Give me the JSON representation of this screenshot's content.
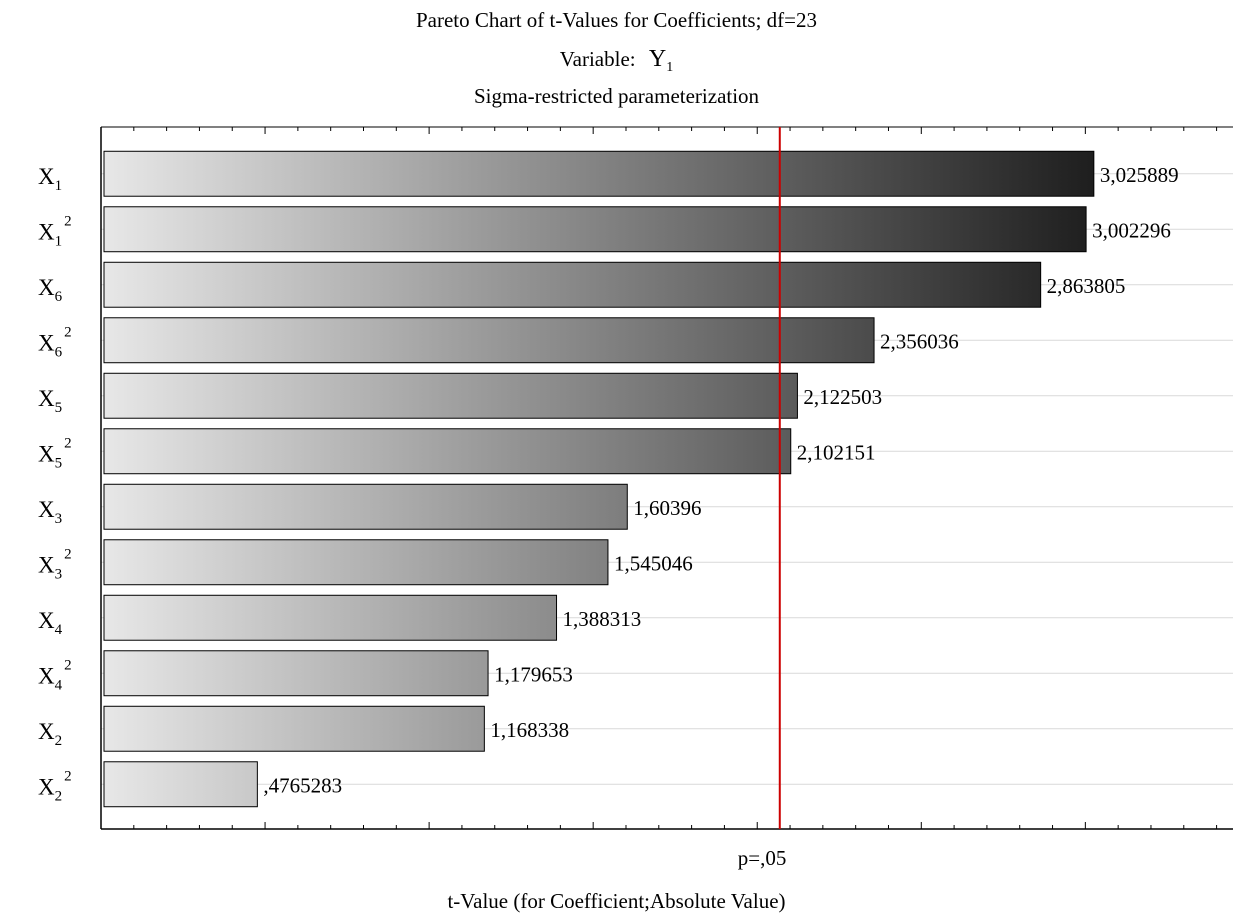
{
  "chart_data": {
    "type": "bar",
    "orientation": "horizontal",
    "title": "Pareto Chart of t-Values for Coefficients; df=23",
    "variable_label": "Variable:",
    "variable_name": "Y",
    "variable_subscript": "1",
    "subtitle": "Sigma-restricted parameterization",
    "xlabel": "t-Value (for Coefficient;Absolute Value)",
    "ylabel": "",
    "significance_label": "p=,05",
    "significance_value": 2.0687,
    "significance_line_color": "#cc0000",
    "xlim": [
      0,
      3.45
    ],
    "grid": true,
    "categories": [
      {
        "base": "X",
        "sub": "1",
        "sup": ""
      },
      {
        "base": "X",
        "sub": "1",
        "sup": "2"
      },
      {
        "base": "X",
        "sub": "6",
        "sup": ""
      },
      {
        "base": "X",
        "sub": "6",
        "sup": "2"
      },
      {
        "base": "X",
        "sub": "5",
        "sup": ""
      },
      {
        "base": "X",
        "sub": "5",
        "sup": "2"
      },
      {
        "base": "X",
        "sub": "3",
        "sup": ""
      },
      {
        "base": "X",
        "sub": "3",
        "sup": "2"
      },
      {
        "base": "X",
        "sub": "4",
        "sup": ""
      },
      {
        "base": "X",
        "sub": "4",
        "sup": "2"
      },
      {
        "base": "X",
        "sub": "2",
        "sup": ""
      },
      {
        "base": "X",
        "sub": "2",
        "sup": "2"
      }
    ],
    "values": [
      3.025889,
      3.002296,
      2.863805,
      2.356036,
      2.122503,
      2.102151,
      1.60396,
      1.545046,
      1.388313,
      1.179653,
      1.168338,
      0.4765283
    ],
    "value_labels": [
      "3,025889",
      "3,002296",
      "2,863805",
      "2,356036",
      "2,122503",
      "2,102151",
      "1,60396",
      "1,545046",
      "1,388313",
      "1,179653",
      "1,168338",
      ",4765283"
    ],
    "bar_gradient": {
      "start": "#e8e8e8",
      "end": "#1e1e1e"
    }
  }
}
